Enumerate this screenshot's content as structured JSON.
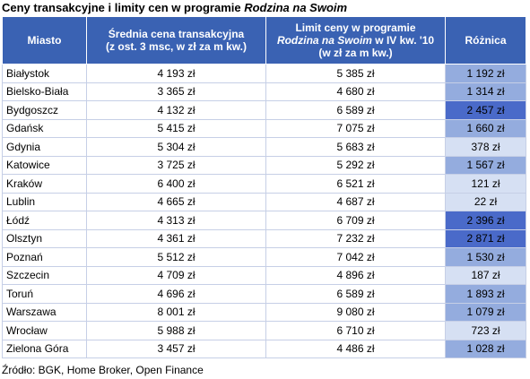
{
  "title": {
    "main": "Ceny transakcyjne i limity cen w programie ",
    "emphasis": "Rodzina na Swoim"
  },
  "headers": {
    "city": "Miasto",
    "avg_line1": "Średnia cena transakcyjna",
    "avg_line2": "(z ost. 3 msc, w zł za m kw.)",
    "limit_line1": "Limit ceny w programie",
    "limit_line2_em": "Rodzina na Swoim",
    "limit_line2_rest": " w IV kw. '10",
    "limit_line3": "(w zł za m kw.)",
    "diff": "Różnica"
  },
  "colors": {
    "header_bg": "#3a62b3",
    "diff_high": "#4a6ac9",
    "diff_mid": "#94acde",
    "diff_low": "#d6e0f3"
  },
  "rows": [
    {
      "city": "Białystok",
      "avg": "4 193 zł",
      "limit": "5 385 zł",
      "diff": "1 192 zł",
      "diff_value": 1192
    },
    {
      "city": "Bielsko-Biała",
      "avg": "3 365 zł",
      "limit": "4 680 zł",
      "diff": "1 314 zł",
      "diff_value": 1314
    },
    {
      "city": "Bydgoszcz",
      "avg": "4 132 zł",
      "limit": "6 589 zł",
      "diff": "2 457 zł",
      "diff_value": 2457
    },
    {
      "city": "Gdańsk",
      "avg": "5 415 zł",
      "limit": "7 075 zł",
      "diff": "1 660 zł",
      "diff_value": 1660
    },
    {
      "city": "Gdynia",
      "avg": "5 304 zł",
      "limit": "5 683 zł",
      "diff": "378 zł",
      "diff_value": 378
    },
    {
      "city": "Katowice",
      "avg": "3 725 zł",
      "limit": "5 292 zł",
      "diff": "1 567 zł",
      "diff_value": 1567
    },
    {
      "city": "Kraków",
      "avg": "6 400 zł",
      "limit": "6 521 zł",
      "diff": "121 zł",
      "diff_value": 121
    },
    {
      "city": "Lublin",
      "avg": "4 665 zł",
      "limit": "4 687 zł",
      "diff": "22 zł",
      "diff_value": 22
    },
    {
      "city": "Łódź",
      "avg": "4 313 zł",
      "limit": "6 709 zł",
      "diff": "2 396 zł",
      "diff_value": 2396
    },
    {
      "city": "Olsztyn",
      "avg": "4 361 zł",
      "limit": "7 232 zł",
      "diff": "2 871 zł",
      "diff_value": 2871
    },
    {
      "city": "Poznań",
      "avg": "5 512 zł",
      "limit": "7 042 zł",
      "diff": "1 530 zł",
      "diff_value": 1530
    },
    {
      "city": "Szczecin",
      "avg": "4 709 zł",
      "limit": "4 896 zł",
      "diff": "187 zł",
      "diff_value": 187
    },
    {
      "city": "Toruń",
      "avg": "4 696 zł",
      "limit": "6 589 zł",
      "diff": "1 893 zł",
      "diff_value": 1893
    },
    {
      "city": "Warszawa",
      "avg": "8 001 zł",
      "limit": "9 080 zł",
      "diff": "1 079 zł",
      "diff_value": 1079
    },
    {
      "city": "Wrocław",
      "avg": "5 988 zł",
      "limit": "6 710 zł",
      "diff": "723 zł",
      "diff_value": 723
    },
    {
      "city": "Zielona Góra",
      "avg": "3 457 zł",
      "limit": "4 486 zł",
      "diff": "1 028 zł",
      "diff_value": 1028
    }
  ],
  "source": "Źródło: BGK, Home Broker, Open Finance"
}
